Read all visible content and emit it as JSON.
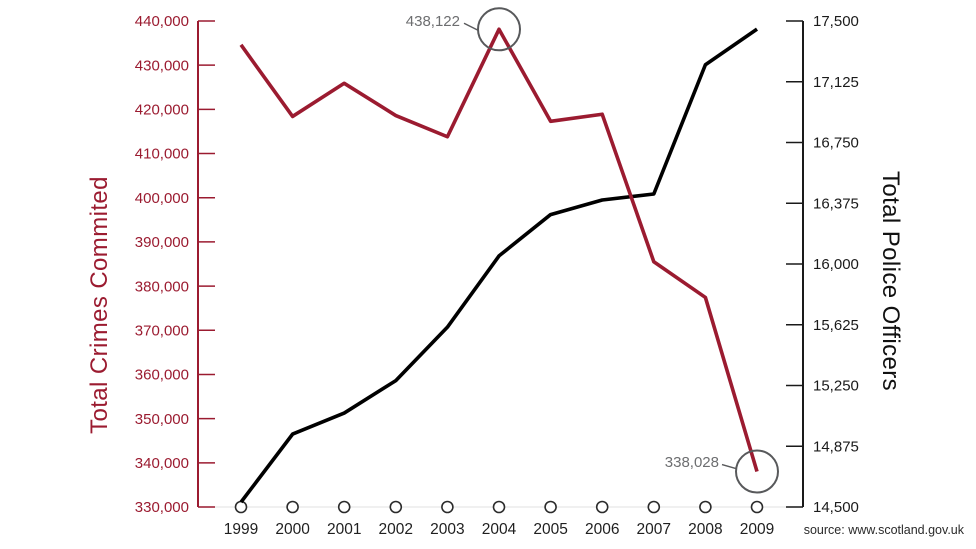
{
  "chart_data": {
    "type": "line",
    "title": "",
    "x_labels": [
      "1999",
      "2000",
      "2001",
      "2002",
      "2003",
      "2004",
      "2005",
      "2006",
      "2007",
      "2008",
      "2009"
    ],
    "left_axis": {
      "title": "Total Crimes Commited",
      "color": "#9b1b30",
      "min": 330000,
      "max": 440000,
      "tick_labels": [
        "330,000",
        "340,000",
        "350,000",
        "360,000",
        "370,000",
        "380,000",
        "390,000",
        "400,000",
        "410,000",
        "420,000",
        "430,000",
        "440,000"
      ]
    },
    "right_axis": {
      "title": "Total Police Officers",
      "color": "#1a1a1a",
      "min": 14500,
      "max": 17500,
      "tick_labels": [
        "14,500",
        "14,875",
        "15,250",
        "15,625",
        "16,000",
        "16,375",
        "16,750",
        "17,125",
        "17,500"
      ]
    },
    "series": [
      {
        "name": "Total Crimes Commited",
        "axis": "left",
        "color": "#9b1b30",
        "values": [
          434600,
          418400,
          425900,
          418600,
          413800,
          438122,
          417300,
          418900,
          385509,
          377433,
          338028
        ]
      },
      {
        "name": "Total Police Officers",
        "axis": "right",
        "color": "#000000",
        "values": [
          14530,
          14950,
          15080,
          15280,
          15610,
          16050,
          16305,
          16395,
          16432,
          17230,
          17450
        ]
      }
    ],
    "annotations": [
      {
        "label": "438,122",
        "series": 0,
        "index": 5,
        "value": 438122
      },
      {
        "label": "338,028",
        "series": 0,
        "index": 10,
        "value": 338028
      }
    ],
    "marker_color": "#2b2b2b",
    "annotation_color": "#58595b",
    "grid": false,
    "legend_position": "none",
    "source": "source: www.scotland.gov.uk"
  }
}
